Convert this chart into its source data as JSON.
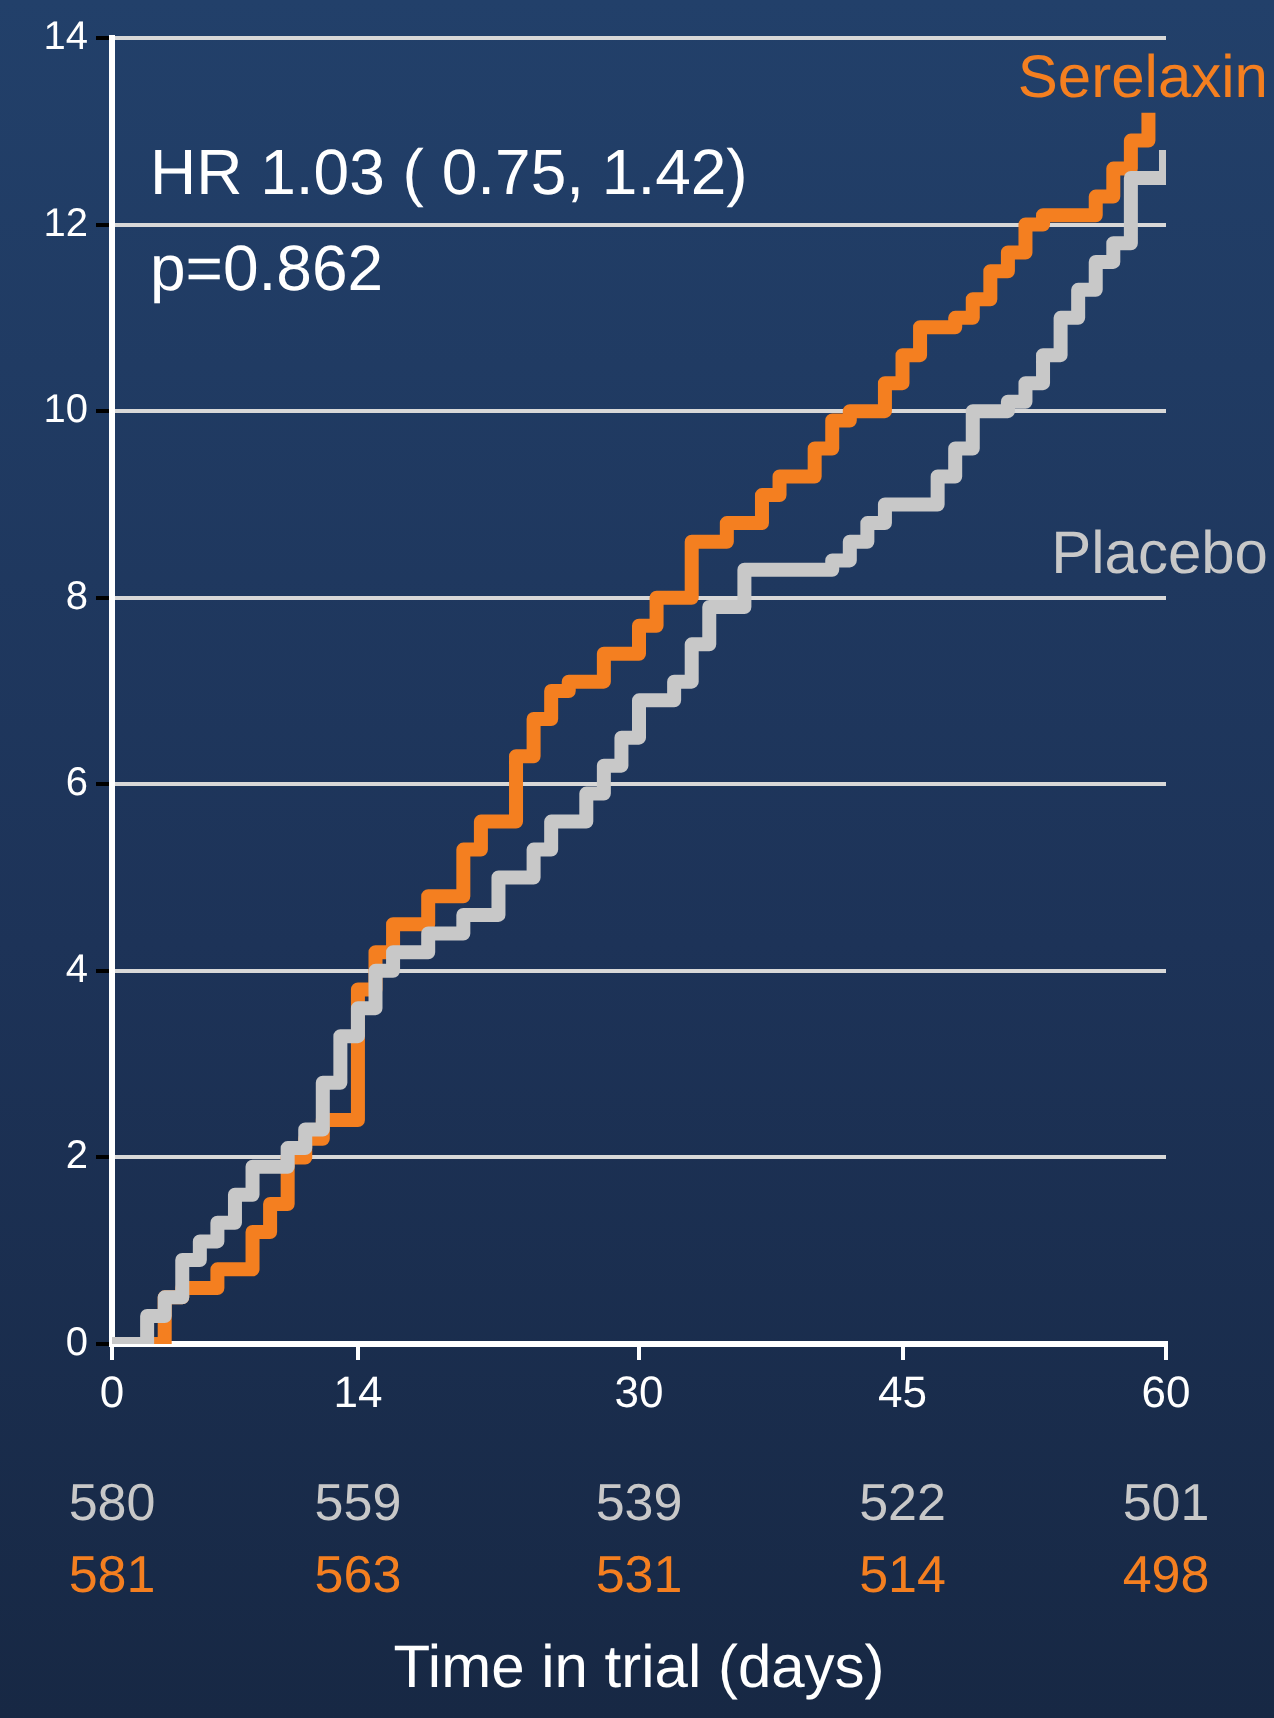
{
  "chart_data": {
    "type": "step",
    "xlabel": "Time in trial (days)",
    "xlim": [
      0,
      60
    ],
    "xticks": [
      0,
      14,
      30,
      45,
      60
    ],
    "ylim": [
      0,
      14
    ],
    "yticks": [
      0,
      2,
      4,
      6,
      8,
      10,
      12,
      14
    ],
    "grid": "y",
    "legend": false,
    "annotations": [
      "HR 1.03 ( 0.75, 1.42)",
      "p=0.862",
      "580",
      "559",
      "539",
      "522",
      "501",
      "581",
      "563",
      "531",
      "514",
      "498"
    ],
    "series": [
      {
        "name": "Placebo",
        "color": "#c8c8c8",
        "x": [
          0,
          2,
          3,
          4,
          5,
          6,
          7,
          8,
          10,
          11,
          12,
          13,
          14,
          15,
          16,
          18,
          20,
          22,
          24,
          25,
          27,
          28,
          29,
          30,
          32,
          33,
          34,
          36,
          41,
          42,
          43,
          44,
          47,
          48,
          49,
          51,
          52,
          53,
          54,
          55,
          56,
          57,
          58,
          60
        ],
        "values": [
          0,
          0.3,
          0.5,
          0.9,
          1.1,
          1.3,
          1.6,
          1.9,
          2.1,
          2.3,
          2.8,
          3.3,
          3.6,
          4.0,
          4.2,
          4.4,
          4.6,
          5.0,
          5.3,
          5.6,
          5.9,
          6.2,
          6.5,
          6.9,
          7.1,
          7.5,
          7.9,
          8.3,
          8.4,
          8.6,
          8.8,
          9.0,
          9.3,
          9.6,
          10.0,
          10.1,
          10.3,
          10.6,
          11.0,
          11.3,
          11.6,
          11.8,
          12.5,
          12.8
        ]
      },
      {
        "name": "Serelaxin",
        "color": "#f47f20",
        "x": [
          0,
          3,
          4,
          6,
          8,
          9,
          10,
          11,
          12,
          14,
          15,
          16,
          18,
          20,
          21,
          23,
          24,
          25,
          26,
          28,
          30,
          31,
          33,
          35,
          37,
          38,
          40,
          41,
          42,
          44,
          45,
          46,
          48,
          49,
          50,
          51,
          52,
          53,
          56,
          57,
          58,
          59
        ],
        "values": [
          0,
          0.5,
          0.6,
          0.8,
          1.2,
          1.5,
          2.0,
          2.2,
          2.4,
          3.8,
          4.2,
          4.5,
          4.8,
          5.3,
          5.6,
          6.3,
          6.7,
          7.0,
          7.1,
          7.4,
          7.7,
          8.0,
          8.6,
          8.8,
          9.1,
          9.3,
          9.6,
          9.9,
          10.0,
          10.3,
          10.6,
          10.9,
          11.0,
          11.2,
          11.5,
          11.7,
          12.0,
          12.1,
          12.3,
          12.6,
          12.9,
          13.2
        ]
      }
    ]
  }
}
